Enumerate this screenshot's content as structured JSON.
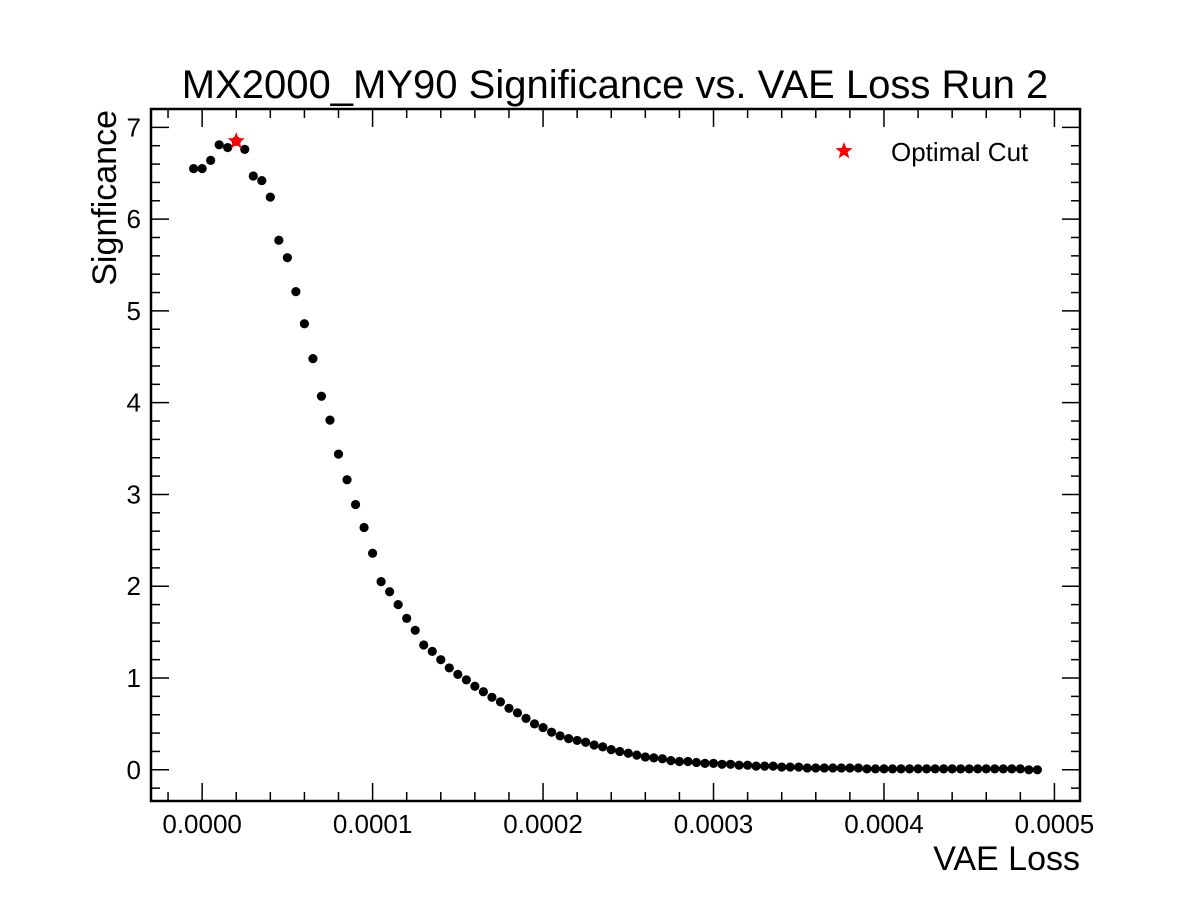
{
  "chart_data": {
    "type": "scatter",
    "title": "MX2000_MY90 Significance vs. VAE Loss Run 2",
    "xlabel": "VAE Loss",
    "ylabel": "Signficance",
    "xlim": [
      -3e-05,
      0.000515
    ],
    "ylim": [
      -0.34,
      7.2
    ],
    "xticks": [
      0.0,
      0.0001,
      0.0002,
      0.0003,
      0.0004,
      0.0005
    ],
    "xtick_labels": [
      "0.0000",
      "0.0001",
      "0.0002",
      "0.0003",
      "0.0004",
      "0.0005"
    ],
    "yticks": [
      0,
      1,
      2,
      3,
      4,
      5,
      6,
      7
    ],
    "ytick_labels": [
      "0",
      "1",
      "2",
      "3",
      "4",
      "5",
      "6",
      "7"
    ],
    "grid": false,
    "legend_position": "top-right",
    "series": [
      {
        "marker": "circle",
        "color": "#000000",
        "x": [
          -5e-06,
          0.0,
          5e-06,
          1e-05,
          1.5e-05,
          2e-05,
          2.5e-05,
          3e-05,
          3.5e-05,
          4e-05,
          4.5e-05,
          5e-05,
          5.5e-05,
          6e-05,
          6.5e-05,
          7e-05,
          7.5e-05,
          8e-05,
          8.5e-05,
          9e-05,
          9.5e-05,
          0.0001,
          0.000105,
          0.00011,
          0.000115,
          0.00012,
          0.000125,
          0.00013,
          0.000135,
          0.00014,
          0.000145,
          0.00015,
          0.000155,
          0.00016,
          0.000165,
          0.00017,
          0.000175,
          0.00018,
          0.000185,
          0.00019,
          0.000195,
          0.0002,
          0.000205,
          0.00021,
          0.000215,
          0.00022,
          0.000225,
          0.00023,
          0.000235,
          0.00024,
          0.000245,
          0.00025,
          0.000255,
          0.00026,
          0.000265,
          0.00027,
          0.000275,
          0.00028,
          0.000285,
          0.00029,
          0.000295,
          0.0003,
          0.000305,
          0.00031,
          0.000315,
          0.00032,
          0.000325,
          0.00033,
          0.000335,
          0.00034,
          0.000345,
          0.00035,
          0.000355,
          0.00036,
          0.000365,
          0.00037,
          0.000375,
          0.00038,
          0.000385,
          0.00039,
          0.000395,
          0.0004,
          0.000405,
          0.00041,
          0.000415,
          0.00042,
          0.000425,
          0.00043,
          0.000435,
          0.00044,
          0.000445,
          0.00045,
          0.000455,
          0.00046,
          0.000465,
          0.00047,
          0.000475,
          0.00048,
          0.000485,
          0.00049
        ],
        "y": [
          6.55,
          6.55,
          6.64,
          6.81,
          6.78,
          6.85,
          6.76,
          6.47,
          6.42,
          6.24,
          5.77,
          5.58,
          5.21,
          4.86,
          4.48,
          4.07,
          3.81,
          3.44,
          3.16,
          2.89,
          2.64,
          2.36,
          2.05,
          1.94,
          1.8,
          1.65,
          1.52,
          1.36,
          1.29,
          1.2,
          1.11,
          1.04,
          0.98,
          0.91,
          0.85,
          0.79,
          0.74,
          0.67,
          0.62,
          0.56,
          0.5,
          0.46,
          0.41,
          0.37,
          0.34,
          0.32,
          0.3,
          0.27,
          0.25,
          0.22,
          0.2,
          0.18,
          0.16,
          0.14,
          0.13,
          0.12,
          0.1,
          0.09,
          0.09,
          0.08,
          0.07,
          0.07,
          0.06,
          0.06,
          0.05,
          0.05,
          0.04,
          0.04,
          0.04,
          0.03,
          0.03,
          0.03,
          0.02,
          0.02,
          0.02,
          0.02,
          0.02,
          0.02,
          0.02,
          0.01,
          0.01,
          0.01,
          0.01,
          0.01,
          0.01,
          0.01,
          0.01,
          0.01,
          0.01,
          0.01,
          0.01,
          0.01,
          0.01,
          0.01,
          0.01,
          0.01,
          0.01,
          0.01,
          0.0,
          0.0
        ]
      },
      {
        "name": "Optimal Cut",
        "marker": "star",
        "color": "#ff0000",
        "x": [
          2e-05
        ],
        "y": [
          6.85
        ]
      }
    ]
  }
}
